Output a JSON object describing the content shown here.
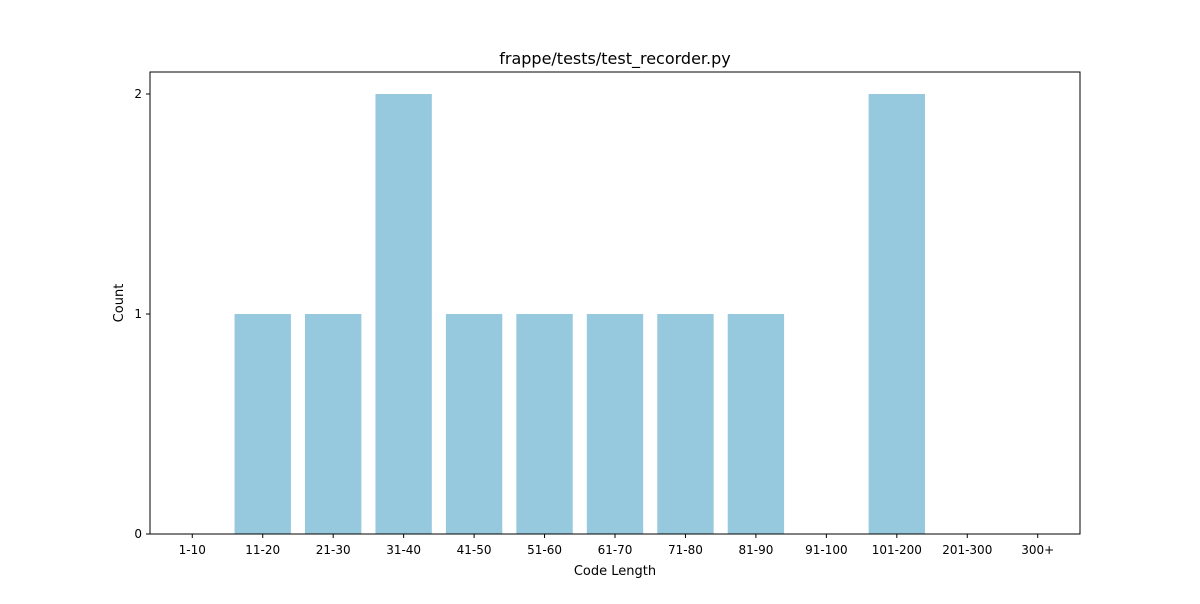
{
  "chart_data": {
    "type": "bar",
    "title": "frappe/tests/test_recorder.py",
    "xlabel": "Code Length",
    "ylabel": "Count",
    "categories": [
      "1-10",
      "11-20",
      "21-30",
      "31-40",
      "41-50",
      "51-60",
      "61-70",
      "71-80",
      "81-90",
      "91-100",
      "101-200",
      "201-300",
      "300+"
    ],
    "values": [
      0,
      1,
      1,
      2,
      1,
      1,
      1,
      1,
      1,
      0,
      2,
      0,
      0
    ],
    "ylim": [
      0,
      2.1
    ],
    "yticks": [
      0,
      1,
      2
    ],
    "bar_color": "#96c9dd",
    "grid": false,
    "legend": "none"
  }
}
